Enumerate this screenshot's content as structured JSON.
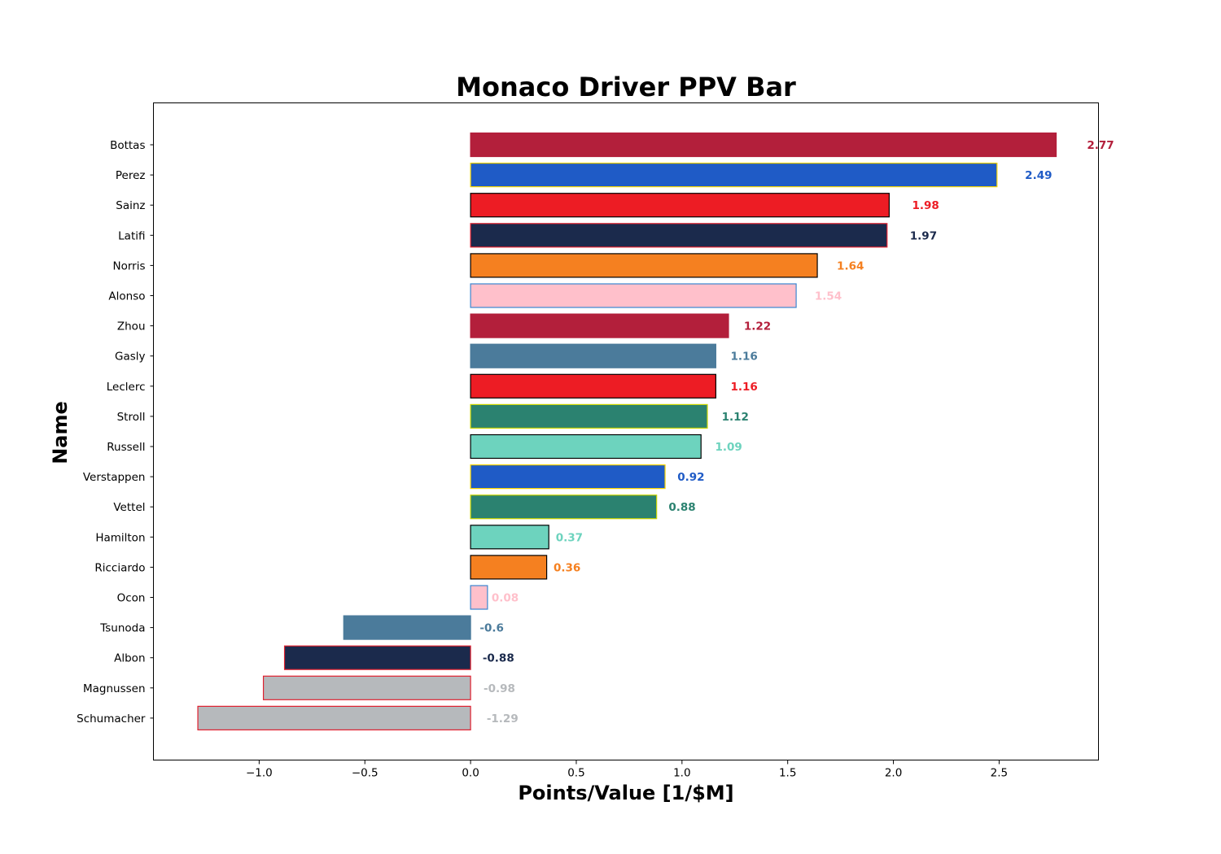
{
  "chart_data": {
    "type": "bar",
    "orientation": "horizontal",
    "title": "Monaco Driver PPV Bar",
    "xlabel": "Points/Value [1/$M]",
    "ylabel": "Name",
    "xlim": [
      -1.5,
      2.97
    ],
    "xticks": [
      -1.0,
      -0.5,
      0.0,
      0.5,
      1.0,
      1.5,
      2.0,
      2.5
    ],
    "xtick_labels": [
      "−1.0",
      "−0.5",
      "0.0",
      "0.5",
      "1.0",
      "1.5",
      "2.0",
      "2.5"
    ],
    "grid": false,
    "bars": [
      {
        "name": "Bottas",
        "value": 2.77,
        "label": "2.77",
        "fill": "#b31f3b",
        "edge": "#b31f3b"
      },
      {
        "name": "Perez",
        "value": 2.49,
        "label": "2.49",
        "fill": "#1f5bc6",
        "edge": "#f5d300"
      },
      {
        "name": "Sainz",
        "value": 1.98,
        "label": "1.98",
        "fill": "#ed1c24",
        "edge": "#000000"
      },
      {
        "name": "Latifi",
        "value": 1.97,
        "label": "1.97",
        "fill": "#1b2a4c",
        "edge": "#e0202f"
      },
      {
        "name": "Norris",
        "value": 1.64,
        "label": "1.64",
        "fill": "#f58020",
        "edge": "#000000"
      },
      {
        "name": "Alonso",
        "value": 1.54,
        "label": "1.54",
        "fill": "#ffc0cb",
        "edge": "#3a86d0"
      },
      {
        "name": "Zhou",
        "value": 1.22,
        "label": "1.22",
        "fill": "#b31f3b",
        "edge": "#b31f3b"
      },
      {
        "name": "Gasly",
        "value": 1.16,
        "label": "1.16",
        "fill": "#4b7b9b",
        "edge": "#4b7b9b"
      },
      {
        "name": "Leclerc",
        "value": 1.16,
        "label": "1.16",
        "fill": "#ed1c24",
        "edge": "#000000"
      },
      {
        "name": "Stroll",
        "value": 1.12,
        "label": "1.12",
        "fill": "#2b8270",
        "edge": "#c8d400"
      },
      {
        "name": "Russell",
        "value": 1.09,
        "label": "1.09",
        "fill": "#6dd3be",
        "edge": "#000000"
      },
      {
        "name": "Verstappen",
        "value": 0.92,
        "label": "0.92",
        "fill": "#1f5bc6",
        "edge": "#f5d300"
      },
      {
        "name": "Vettel",
        "value": 0.88,
        "label": "0.88",
        "fill": "#2b8270",
        "edge": "#c8d400"
      },
      {
        "name": "Hamilton",
        "value": 0.37,
        "label": "0.37",
        "fill": "#6dd3be",
        "edge": "#000000"
      },
      {
        "name": "Ricciardo",
        "value": 0.36,
        "label": "0.36",
        "fill": "#f58020",
        "edge": "#000000"
      },
      {
        "name": "Ocon",
        "value": 0.08,
        "label": "0.08",
        "fill": "#ffc0cb",
        "edge": "#3a86d0"
      },
      {
        "name": "Tsunoda",
        "value": -0.6,
        "label": "-0.6",
        "fill": "#4b7b9b",
        "edge": "#4b7b9b"
      },
      {
        "name": "Albon",
        "value": -0.88,
        "label": "-0.88",
        "fill": "#1b2a4c",
        "edge": "#e0202f"
      },
      {
        "name": "Magnussen",
        "value": -0.98,
        "label": "-0.98",
        "fill": "#b6b9bc",
        "edge": "#e0202f"
      },
      {
        "name": "Schumacher",
        "value": -1.29,
        "label": "-1.29",
        "fill": "#b6b9bc",
        "edge": "#e0202f"
      }
    ]
  }
}
